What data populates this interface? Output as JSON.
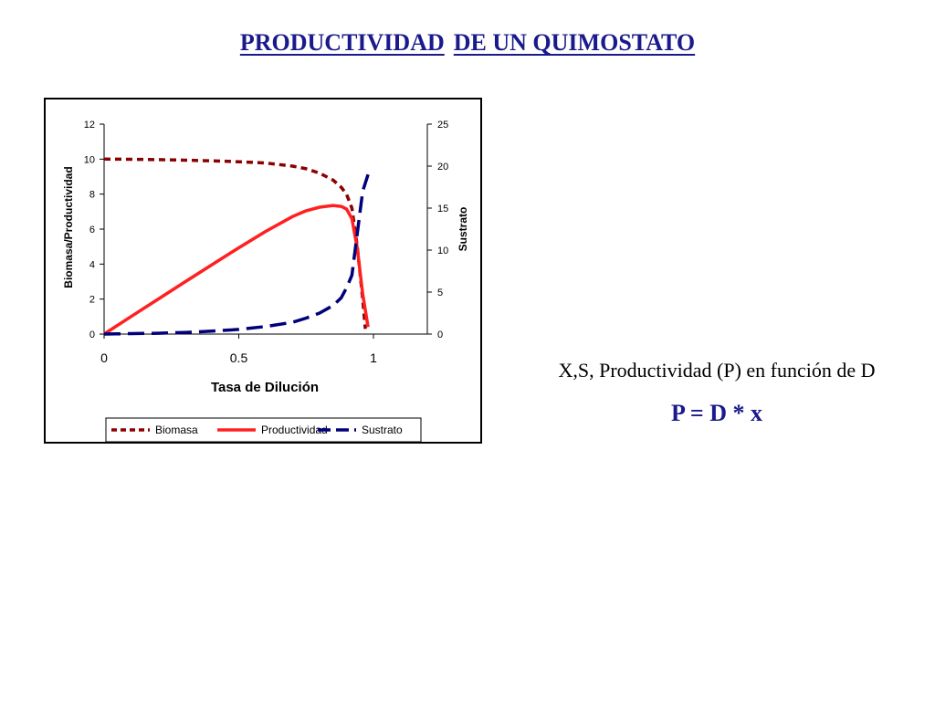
{
  "slide": {
    "title_part1": "PRODUCTIVIDAD",
    "title_part2": "DE UN QUIMOSTATO",
    "caption": "X,S, Productividad (P) en función de D",
    "formula": "P = D * x"
  },
  "chart_data": {
    "type": "line",
    "xlabel": "Tasa de Dilución",
    "ylabel_left": "Biomasa/Productividad",
    "ylabel_right": "Sustrato",
    "xlim": [
      0,
      1.2
    ],
    "ylim_left": [
      0,
      12
    ],
    "ylim_right": [
      0,
      25
    ],
    "x_ticks": [
      "0",
      "0.5",
      "1"
    ],
    "y_left_ticks": [
      "0",
      "2",
      "4",
      "6",
      "8",
      "10",
      "12"
    ],
    "y_right_ticks": [
      "0",
      "5",
      "10",
      "15",
      "20",
      "25"
    ],
    "legend_position": "bottom",
    "series": [
      {
        "name": "Biomasa",
        "axis": "left",
        "color": "#8b0000",
        "style": "dotted",
        "x": [
          0,
          0.1,
          0.2,
          0.3,
          0.4,
          0.5,
          0.6,
          0.7,
          0.75,
          0.8,
          0.85,
          0.88,
          0.9,
          0.92,
          0.94,
          0.96,
          0.97
        ],
        "y": [
          10.0,
          9.99,
          9.97,
          9.94,
          9.9,
          9.85,
          9.78,
          9.6,
          9.45,
          9.2,
          8.8,
          8.4,
          8.0,
          7.2,
          5.0,
          2.0,
          0.3
        ]
      },
      {
        "name": "Productividad",
        "axis": "left",
        "color": "#ff2020",
        "style": "solid",
        "x": [
          0,
          0.1,
          0.2,
          0.3,
          0.4,
          0.5,
          0.6,
          0.7,
          0.75,
          0.8,
          0.85,
          0.88,
          0.9,
          0.92,
          0.94,
          0.96,
          0.98
        ],
        "y": [
          0,
          1.0,
          1.99,
          2.98,
          3.96,
          4.93,
          5.87,
          6.72,
          7.05,
          7.25,
          7.35,
          7.3,
          7.15,
          6.6,
          4.9,
          2.3,
          0.4
        ]
      },
      {
        "name": "Sustrato",
        "axis": "right",
        "color": "#00007a",
        "style": "dashed",
        "x": [
          0,
          0.1,
          0.2,
          0.3,
          0.4,
          0.5,
          0.6,
          0.7,
          0.75,
          0.8,
          0.85,
          0.88,
          0.9,
          0.92,
          0.94,
          0.96,
          0.98
        ],
        "y": [
          0,
          0.05,
          0.1,
          0.2,
          0.35,
          0.55,
          0.9,
          1.4,
          1.9,
          2.5,
          3.4,
          4.3,
          5.5,
          7.0,
          12.0,
          17.0,
          19.0
        ]
      }
    ]
  }
}
